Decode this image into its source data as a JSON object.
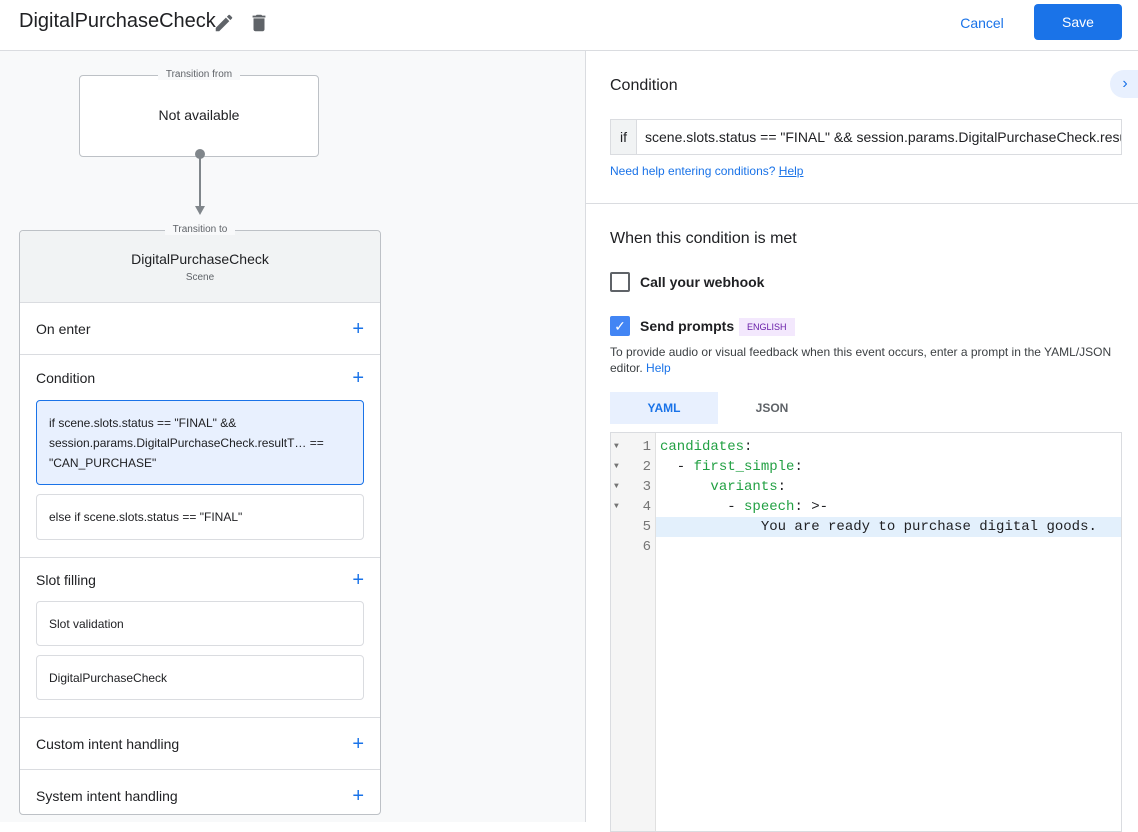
{
  "header": {
    "title": "DigitalPurchaseCheck",
    "cancel_label": "Cancel",
    "save_label": "Save"
  },
  "flow": {
    "from_legend": "Transition from",
    "from_value": "Not available",
    "to_legend": "Transition to",
    "scene_name": "DigitalPurchaseCheck",
    "scene_type": "Scene",
    "sections": {
      "on_enter": "On enter",
      "condition": "Condition",
      "slot_filling": "Slot filling",
      "custom_intent": "Custom intent handling",
      "system_intent": "System intent handling"
    },
    "conditions": [
      "if scene.slots.status == \"FINAL\" && session.params.DigitalPurchaseCheck.resultT… == \"CAN_PURCHASE\"",
      "else if scene.slots.status == \"FINAL\""
    ],
    "slots": [
      "Slot validation",
      "DigitalPurchaseCheck"
    ]
  },
  "panel": {
    "condition_title": "Condition",
    "if_label": "if",
    "condition_value": "scene.slots.status == \"FINAL\" && session.params.DigitalPurchaseCheck.resultType == \"CAN_PURCHASE\"",
    "help_text": "Need help entering conditions?",
    "help_link": "Help",
    "met_title": "When this condition is met",
    "webhook_label": "Call your webhook",
    "webhook_checked": false,
    "prompts_label": "Send prompts",
    "prompts_checked": true,
    "language_badge": "ENGLISH",
    "prompts_desc": "To provide audio or visual feedback when this event occurs, enter a prompt in the YAML/JSON editor.",
    "prompts_help": "Help",
    "tabs": [
      "YAML",
      "JSON"
    ],
    "active_tab": "YAML",
    "code_lines": [
      {
        "num": "1",
        "pre": "",
        "key": "candidates",
        "post": ":"
      },
      {
        "num": "2",
        "pre": "  - ",
        "key": "first_simple",
        "post": ":"
      },
      {
        "num": "3",
        "pre": "      ",
        "key": "variants",
        "post": ":"
      },
      {
        "num": "4",
        "pre": "        - ",
        "key": "speech",
        "post": ": >-"
      },
      {
        "num": "5",
        "pre": "            You are ready to purchase digital goods.",
        "key": "",
        "post": ""
      },
      {
        "num": "6",
        "pre": "",
        "key": "",
        "post": ""
      }
    ]
  },
  "colors": {
    "accent": "#1a73e8",
    "yaml_key": "#22a043",
    "badge_bg": "#f3e8fd"
  }
}
